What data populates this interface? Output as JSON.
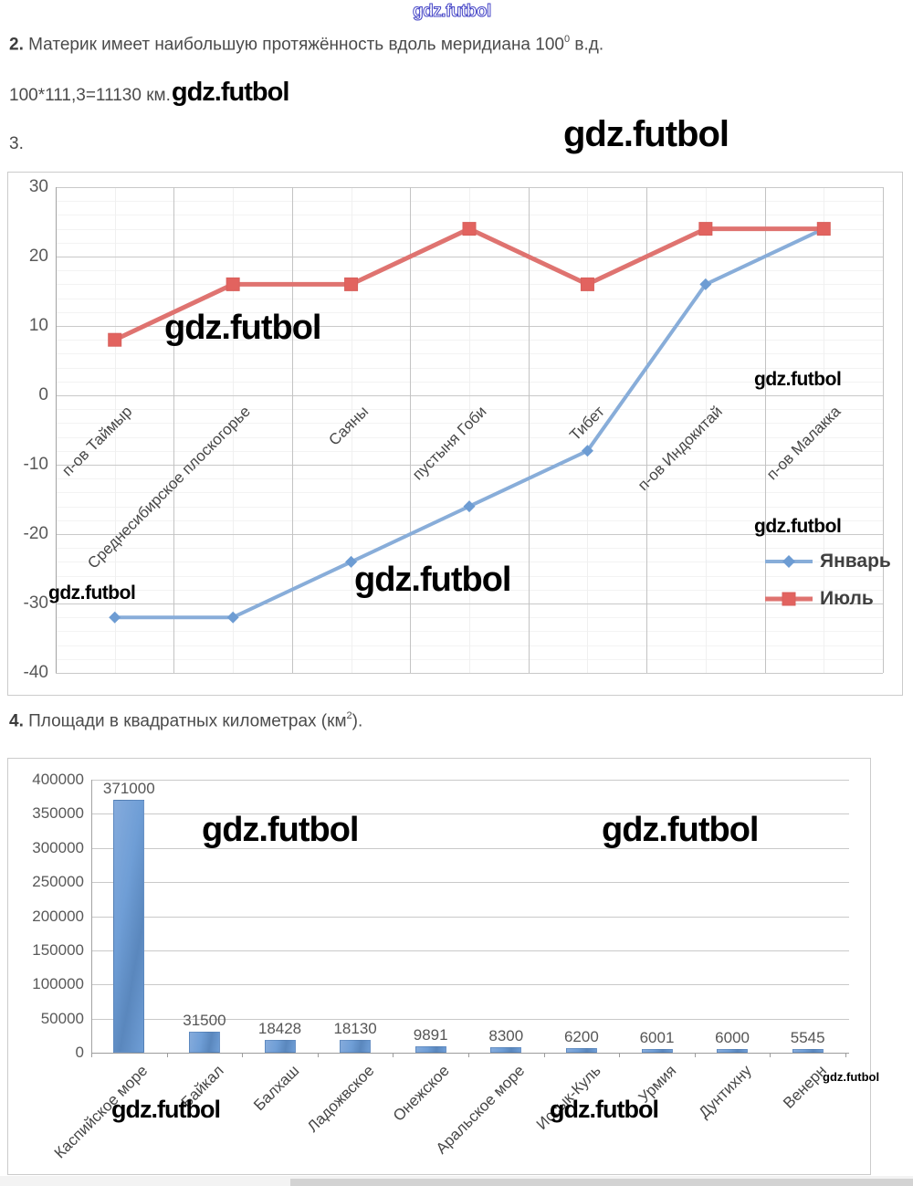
{
  "watermark": {
    "text": "gdz.futbol"
  },
  "problems": {
    "p2_num": "2.",
    "p2_text": " Материк имеет наибольшую протяжённость вдоль меридиана 100",
    "p2_sup": "0",
    "p2_tail": " в.д.",
    "formula": "100*111,3=11130 км.",
    "p3_num": "3.",
    "p4_num": "4.",
    "p4_text": " Площади в квадратных километрах (км",
    "p4_sup": "2",
    "p4_tail": ")."
  },
  "chart_data": [
    {
      "type": "line",
      "title": "",
      "categories": [
        "п-ов Таймыр",
        "Среднесибирское плоскогорье",
        "Саяны",
        "пустыня Гоби",
        "Тибет",
        "п-ов Индокитай",
        "п-ов Малакка"
      ],
      "series": [
        {
          "name": "Январь",
          "marker": "diamond",
          "color": "#88add9",
          "marker_color": "#6d9cd3",
          "values": [
            -32,
            -32,
            -24,
            -16,
            -8,
            16,
            24
          ]
        },
        {
          "name": "Июль",
          "marker": "square",
          "color": "#df7370",
          "marker_color": "#e2635f",
          "values": [
            8,
            16,
            16,
            24,
            16,
            24,
            24
          ]
        }
      ],
      "ylim": [
        -40,
        30
      ],
      "ytick_step": 10,
      "grid": true,
      "legend_position": "inside-right"
    },
    {
      "type": "bar",
      "title": "",
      "categories": [
        "Каспийское море",
        "Байкал",
        "Балхаш",
        "Ладожвское",
        "Онежское",
        "Аральское море",
        "Иссык-Куль",
        "Урмия",
        "Дунтихну",
        "Венерн"
      ],
      "values": [
        371000,
        31500,
        18428,
        18130,
        9891,
        8300,
        6200,
        6001,
        6000,
        5545
      ],
      "data_labels": [
        "371000",
        "31500",
        "18428",
        "18130",
        "9891",
        "8300",
        "6200",
        "6001",
        "6000",
        "5545"
      ],
      "bar_color": "#6f9ed6",
      "ylim": [
        0,
        400000
      ],
      "ytick_step": 50000,
      "grid": true,
      "legend_position": "none"
    }
  ]
}
